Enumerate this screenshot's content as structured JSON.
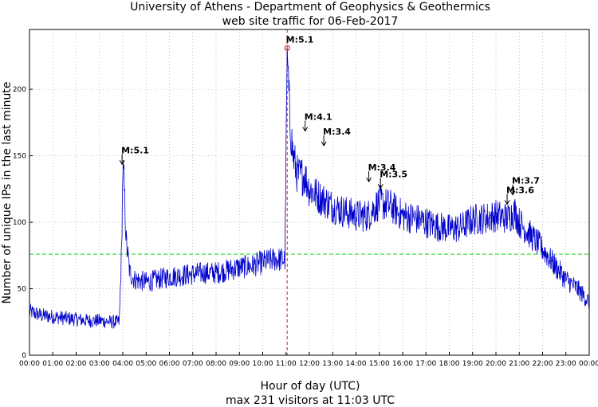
{
  "chart_data": {
    "type": "line",
    "title": "University of Athens - Department of Geophysics & Geothermics",
    "subtitle": "web site traffic for 06-Feb-2017",
    "xlabel": "Hour of day (UTC)",
    "footer": "max 231 visitors at 11:03 UTC",
    "ylabel": "Number of unique IPs in the last minute",
    "x_unit": "hours (UTC)",
    "xlim": [
      0,
      24
    ],
    "ylim": [
      0,
      245
    ],
    "xticks": [
      "00:00",
      "01:00",
      "02:00",
      "03:00",
      "04:00",
      "05:00",
      "06:00",
      "07:00",
      "08:00",
      "09:00",
      "10:00",
      "11:00",
      "12:00",
      "13:00",
      "14:00",
      "15:00",
      "16:00",
      "17:00",
      "18:00",
      "19:00",
      "20:00",
      "21:00",
      "22:00",
      "23:00",
      "00:00"
    ],
    "yticks": [
      0,
      50,
      100,
      150,
      200
    ],
    "grid": true,
    "average_line": {
      "value": 76,
      "color": "#44dd44",
      "style": "dashed"
    },
    "max_marker": {
      "time": "11:03",
      "x": 11.05,
      "value": 231,
      "color": "#dd2222",
      "style": "dashed"
    },
    "series": [
      {
        "name": "unique IPs per minute",
        "color": "#0000cc",
        "x": [
          0,
          0.5,
          1,
          1.5,
          2,
          2.5,
          3,
          3.5,
          3.85,
          3.95,
          4.0,
          4.05,
          4.15,
          4.3,
          4.5,
          5,
          5.5,
          6,
          6.5,
          7,
          7.5,
          8,
          8.5,
          9,
          9.5,
          10,
          10.5,
          10.95,
          11.0,
          11.05,
          11.15,
          11.3,
          11.5,
          11.8,
          12,
          12.5,
          13,
          13.5,
          14,
          14.5,
          15,
          15.5,
          16,
          16.5,
          17,
          17.5,
          18,
          18.5,
          19,
          19.5,
          20,
          20.5,
          20.8,
          21,
          21.5,
          22,
          22.5,
          23,
          23.5,
          24
        ],
        "values": [
          33,
          30,
          29,
          28,
          27,
          26,
          26,
          25,
          25,
          80,
          140,
          130,
          85,
          62,
          57,
          55,
          57,
          59,
          60,
          61,
          62,
          62,
          64,
          66,
          67,
          70,
          72,
          72,
          150,
          231,
          180,
          150,
          135,
          135,
          125,
          118,
          112,
          108,
          105,
          105,
          115,
          112,
          105,
          103,
          100,
          97,
          95,
          96,
          102,
          103,
          105,
          103,
          108,
          100,
          90,
          80,
          68,
          57,
          50,
          40
        ]
      }
    ],
    "annotations": [
      {
        "label": "M:5.1",
        "x": 3.97,
        "y": 143
      },
      {
        "label": "M:5.1",
        "x": 11.03,
        "y": 235
      },
      {
        "label": "M:4.1",
        "x": 11.82,
        "y": 168
      },
      {
        "label": "M:3.4",
        "x": 12.62,
        "y": 157
      },
      {
        "label": "M:3.4",
        "x": 14.55,
        "y": 130
      },
      {
        "label": "M:3.5",
        "x": 15.05,
        "y": 125
      },
      {
        "label": "M:3.7",
        "x": 20.72,
        "y": 120
      },
      {
        "label": "M:3.6",
        "x": 20.48,
        "y": 113
      }
    ]
  }
}
